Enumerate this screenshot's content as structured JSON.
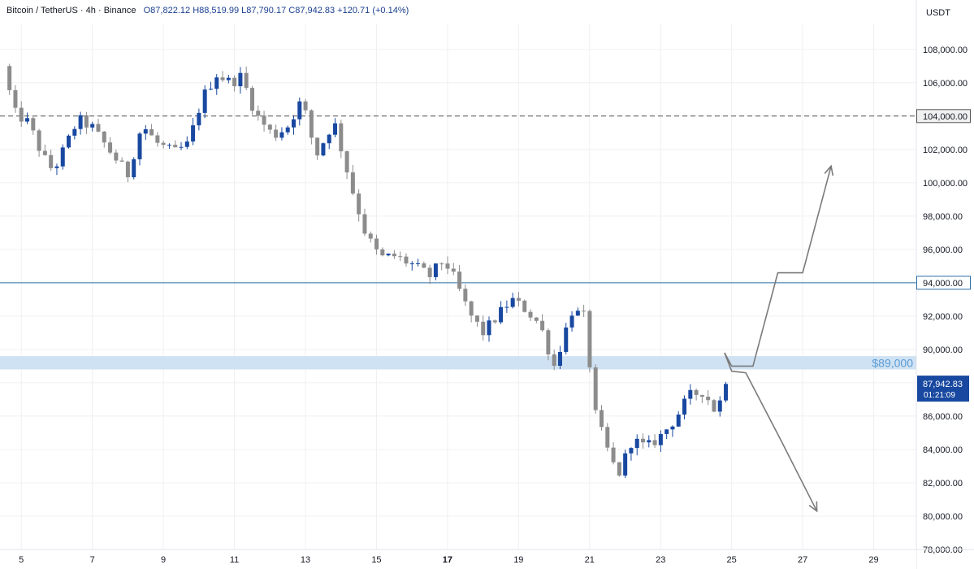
{
  "header": {
    "symbol": "Bitcoin / TetherUS",
    "interval": "4h",
    "exchange": "Binance",
    "open": "O87,822.12",
    "high": "H88,519.99",
    "low": "L87,790.17",
    "close": "C87,942.83",
    "change": "+120.71 (+0.14%)"
  },
  "currency": "USDT",
  "colors": {
    "up": "#1848a0",
    "down": "#8c8c8c",
    "line": "#2b6fa8",
    "zone": "#cfe2f3",
    "zone_label": "#5b9bd5",
    "price_tag": "#1848a0",
    "grid": "#f0f0f0"
  },
  "chart_data": {
    "type": "candlestick",
    "interval": "4h",
    "ylim": [
      78000,
      109500
    ],
    "y_ticks": [
      "108,000.00",
      "106,000.00",
      "102,000.00",
      "100,000.00",
      "98,000.00",
      "96,000.00",
      "92,000.00",
      "90,000.00",
      "86,000.00",
      "84,000.00",
      "82,000.00",
      "80,000.00",
      "78,000.00"
    ],
    "x_range": [
      4.4,
      30.2
    ],
    "x_ticks": [
      {
        "value": 5,
        "label": "5",
        "bold": false
      },
      {
        "value": 7,
        "label": "7",
        "bold": false
      },
      {
        "value": 9,
        "label": "9",
        "bold": false
      },
      {
        "value": 11,
        "label": "11",
        "bold": false
      },
      {
        "value": 13,
        "label": "13",
        "bold": false
      },
      {
        "value": 15,
        "label": "15",
        "bold": false
      },
      {
        "value": 17,
        "label": "17",
        "bold": true
      },
      {
        "value": 19,
        "label": "19",
        "bold": false
      },
      {
        "value": 21,
        "label": "21",
        "bold": false
      },
      {
        "value": 23,
        "label": "23",
        "bold": false
      },
      {
        "value": 25,
        "label": "25",
        "bold": false
      },
      {
        "value": 27,
        "label": "27",
        "bold": false
      },
      {
        "value": 29,
        "label": "29",
        "bold": false
      }
    ],
    "anchors": [
      [
        4.5,
        107000
      ],
      [
        4.8,
        104200
      ],
      [
        5.2,
        103600
      ],
      [
        5.6,
        101600
      ],
      [
        5.9,
        100700
      ],
      [
        6.2,
        102000
      ],
      [
        6.6,
        103800
      ],
      [
        7.0,
        103300
      ],
      [
        7.6,
        101600
      ],
      [
        8.0,
        100500
      ],
      [
        8.4,
        103500
      ],
      [
        8.8,
        102400
      ],
      [
        9.3,
        101800
      ],
      [
        9.7,
        102300
      ],
      [
        10.1,
        105100
      ],
      [
        10.5,
        106500
      ],
      [
        10.9,
        106000
      ],
      [
        11.2,
        106400
      ],
      [
        11.6,
        104100
      ],
      [
        12.1,
        102800
      ],
      [
        12.5,
        103400
      ],
      [
        12.9,
        105000
      ],
      [
        13.3,
        101600
      ],
      [
        13.8,
        103700
      ],
      [
        14.3,
        99700
      ],
      [
        14.7,
        96900
      ],
      [
        15.1,
        95500
      ],
      [
        15.5,
        95600
      ],
      [
        16.0,
        95100
      ],
      [
        16.5,
        94400
      ],
      [
        16.9,
        95400
      ],
      [
        17.2,
        94200
      ],
      [
        17.6,
        92200
      ],
      [
        18.0,
        91000
      ],
      [
        18.4,
        92000
      ],
      [
        18.8,
        93000
      ],
      [
        19.2,
        92400
      ],
      [
        19.6,
        91500
      ],
      [
        20.0,
        89000
      ],
      [
        20.5,
        92300
      ],
      [
        20.9,
        91900
      ],
      [
        21.1,
        86500
      ],
      [
        21.5,
        84000
      ],
      [
        21.8,
        82400
      ],
      [
        22.2,
        84600
      ],
      [
        22.6,
        84100
      ],
      [
        23.0,
        84800
      ],
      [
        23.4,
        85800
      ],
      [
        23.8,
        87200
      ],
      [
        24.2,
        87500
      ],
      [
        24.6,
        86100
      ],
      [
        24.8,
        88300
      ],
      [
        25.0,
        87900
      ]
    ],
    "horizontal_lines": [
      {
        "price": 104000,
        "label": "104,000.00",
        "style": "dashed"
      },
      {
        "price": 94000,
        "label": "94,000.00",
        "style": "solid"
      }
    ],
    "zone": {
      "from": 88800,
      "to": 89600,
      "label": "$89,000"
    },
    "last_price": {
      "price": 87942.83,
      "label": "87,942.83",
      "countdown": "01:21:09"
    },
    "projection_up": [
      [
        24.8,
        89800
      ],
      [
        25.0,
        89000
      ],
      [
        25.6,
        89000
      ],
      [
        26.3,
        94600
      ],
      [
        27.0,
        94600
      ],
      [
        27.8,
        101000
      ]
    ],
    "projection_down": [
      [
        24.8,
        89800
      ],
      [
        25.0,
        88700
      ],
      [
        25.4,
        88600
      ],
      [
        26.4,
        84500
      ],
      [
        27.4,
        80300
      ]
    ]
  }
}
